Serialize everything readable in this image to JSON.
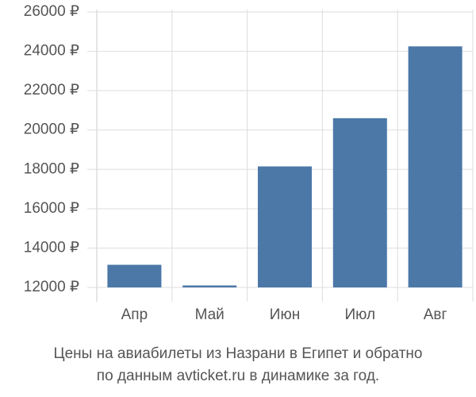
{
  "chart_data": {
    "type": "bar",
    "title": [
      "Цены на авиабилеты из Назрани в Египет и обратно",
      "по данным avticket.ru в динамике за год."
    ],
    "categories": [
      "Апр",
      "Май",
      "Июн",
      "Июл",
      "Авг"
    ],
    "values": [
      13150,
      12100,
      18150,
      20600,
      24250
    ],
    "color": "#4c78a8",
    "ylim": [
      12000,
      26000
    ],
    "yticks": [
      {
        "value": 12000,
        "label": "12000 ₽"
      },
      {
        "value": 14000,
        "label": "14000 ₽"
      },
      {
        "value": 16000,
        "label": "16000 ₽"
      },
      {
        "value": 18000,
        "label": "18000 ₽"
      },
      {
        "value": 20000,
        "label": "20000 ₽"
      },
      {
        "value": 22000,
        "label": "22000 ₽"
      },
      {
        "value": 24000,
        "label": "24000 ₽"
      },
      {
        "value": 26000,
        "label": "26000 ₽"
      }
    ],
    "grid": true
  }
}
